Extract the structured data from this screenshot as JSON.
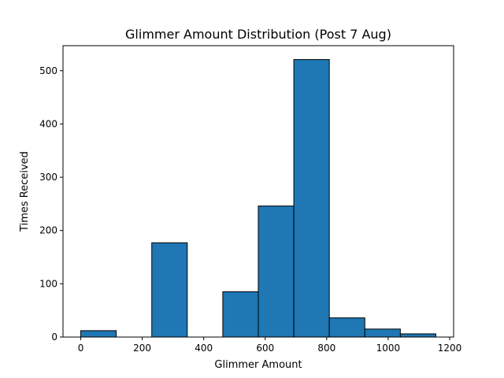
{
  "chart_data": {
    "type": "bar",
    "title": "Glimmer Amount Distribution (Post 7 Aug)",
    "xlabel": "Glimmer Amount",
    "ylabel": "Times Received",
    "bins": [
      {
        "x0": 0,
        "x1": 115.5,
        "count": 12
      },
      {
        "x0": 115.5,
        "x1": 231,
        "count": 0
      },
      {
        "x0": 231,
        "x1": 346.5,
        "count": 177
      },
      {
        "x0": 346.5,
        "x1": 462,
        "count": 0
      },
      {
        "x0": 462,
        "x1": 577.5,
        "count": 85
      },
      {
        "x0": 577.5,
        "x1": 693,
        "count": 246
      },
      {
        "x0": 693,
        "x1": 808.5,
        "count": 521
      },
      {
        "x0": 808.5,
        "x1": 924,
        "count": 36
      },
      {
        "x0": 924,
        "x1": 1039.5,
        "count": 15
      },
      {
        "x0": 1039.5,
        "x1": 1155,
        "count": 6
      }
    ],
    "xlim": [
      -57.75,
      1212.75
    ],
    "ylim": [
      0,
      547
    ],
    "x_ticks": [
      0,
      200,
      400,
      600,
      800,
      1000,
      1200
    ],
    "y_ticks": [
      0,
      100,
      200,
      300,
      400,
      500
    ],
    "grid": false,
    "bar_color": "#1f77b4",
    "edge_color": "#000000"
  }
}
